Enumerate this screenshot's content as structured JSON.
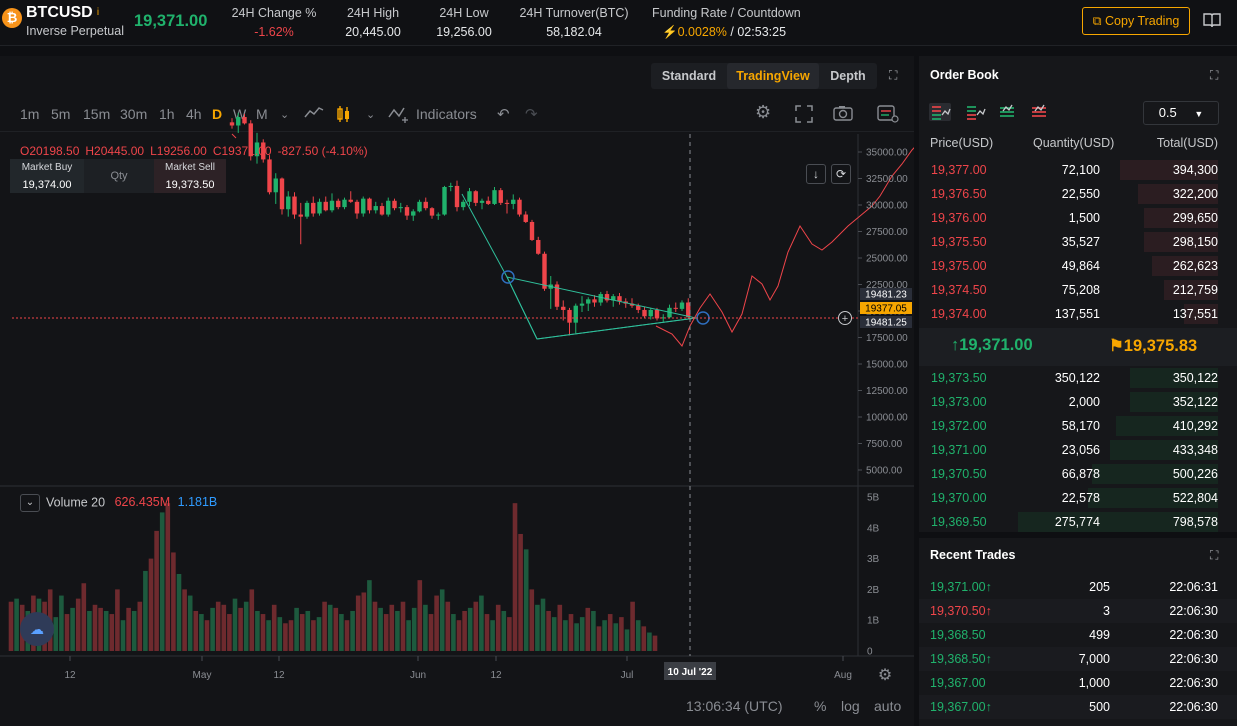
{
  "header": {
    "coin_icon": "bitcoin-icon",
    "symbol": "BTCUSD",
    "contract_type": "Inverse Perpetual",
    "last_price": "19,371.00",
    "stats": [
      {
        "label": "24H Change %",
        "value": "-1.62%",
        "color": "red"
      },
      {
        "label": "24H High",
        "value": "20,445.00",
        "color": "white"
      },
      {
        "label": "24H Low",
        "value": "19,256.00",
        "color": "white"
      },
      {
        "label": "24H Turnover(BTC)",
        "value": "58,182.04",
        "color": "white"
      }
    ],
    "funding_label": "Funding Rate / Countdown",
    "funding_rate": "0.0028%",
    "funding_sep": " / ",
    "countdown": "02:53:25",
    "copy_trading_label": "Copy Trading"
  },
  "chart_tabs": {
    "standard": "Standard",
    "tradingview": "TradingView",
    "depth": "Depth",
    "active": "TradingView"
  },
  "toolbar": {
    "timeframes": [
      "1m",
      "5m",
      "15m",
      "30m",
      "1h",
      "4h",
      "D",
      "W",
      "M"
    ],
    "active_timeframe": "D",
    "indicators_label": "Indicators"
  },
  "ohlc": {
    "open": "O20198.50",
    "high": "H20445.00",
    "low": "L19256.00",
    "close": "C19371.00",
    "change": "-827.50 (-4.10%)"
  },
  "quick_trade": {
    "buy_label": "Market Buy",
    "buy_price": "19,374.00",
    "qty_label": "Qty",
    "sell_label": "Market Sell",
    "sell_price": "19,373.50"
  },
  "chart_data": {
    "type": "candlestick",
    "price_axis": [
      "35000.00",
      "32500.00",
      "30000.00",
      "27500.00",
      "25000.00",
      "22500.00",
      "20000.00",
      "17500.00",
      "15000.00",
      "12500.00",
      "10000.00",
      "7500.00",
      "5000.00"
    ],
    "price_tags": [
      {
        "label": "19481.23",
        "color": "#2a2e39",
        "text": "#ffffff"
      },
      {
        "label": "19377.05",
        "color": "#f7a600",
        "text": "#000000"
      },
      {
        "label": "19481.25",
        "color": "#2a2e39",
        "text": "#ffffff"
      }
    ],
    "volume_label": "Volume 20",
    "volume_value": "626.435M",
    "volume_ma": "1.181B",
    "volume_axis": [
      "5B",
      "4B",
      "3B",
      "2B",
      "1B",
      "0"
    ],
    "time_axis": [
      "12",
      "May",
      "12",
      "Jun",
      "12",
      "Jul",
      "Aug"
    ],
    "crosshair_date": "10 Jul '22",
    "up_color": "#20b26c",
    "down_color": "#ef454a"
  },
  "bottom_bar": {
    "time": "13:06:34 (UTC)",
    "percent": "%",
    "log": "log",
    "auto": "auto"
  },
  "order_book": {
    "title": "Order Book",
    "step": "0.5",
    "headers": {
      "price": "Price(USD)",
      "qty": "Quantity(USD)",
      "total": "Total(USD)"
    },
    "asks": [
      {
        "price": "19,377.00",
        "qty": "72,100",
        "total": "394,300",
        "depth": 0.49
      },
      {
        "price": "19,376.50",
        "qty": "22,550",
        "total": "322,200",
        "depth": 0.4
      },
      {
        "price": "19,376.00",
        "qty": "1,500",
        "total": "299,650",
        "depth": 0.37
      },
      {
        "price": "19,375.50",
        "qty": "35,527",
        "total": "298,150",
        "depth": 0.37
      },
      {
        "price": "19,375.00",
        "qty": "49,864",
        "total": "262,623",
        "depth": 0.33
      },
      {
        "price": "19,374.50",
        "qty": "75,208",
        "total": "212,759",
        "depth": 0.27
      },
      {
        "price": "19,374.00",
        "qty": "137,551",
        "total": "137,551",
        "depth": 0.17
      }
    ],
    "mid_last": "19,371.00",
    "mid_mark": "19,375.83",
    "bids": [
      {
        "price": "19,373.50",
        "qty": "350,122",
        "total": "350,122",
        "depth": 0.44
      },
      {
        "price": "19,373.00",
        "qty": "2,000",
        "total": "352,122",
        "depth": 0.44
      },
      {
        "price": "19,372.00",
        "qty": "58,170",
        "total": "410,292",
        "depth": 0.51
      },
      {
        "price": "19,371.00",
        "qty": "23,056",
        "total": "433,348",
        "depth": 0.54
      },
      {
        "price": "19,370.50",
        "qty": "66,878",
        "total": "500,226",
        "depth": 0.63
      },
      {
        "price": "19,370.00",
        "qty": "22,578",
        "total": "522,804",
        "depth": 0.65
      },
      {
        "price": "19,369.50",
        "qty": "275,774",
        "total": "798,578",
        "depth": 1.0
      }
    ]
  },
  "recent_trades": {
    "title": "Recent Trades",
    "rows": [
      {
        "price": "19,371.00",
        "arrow": "↑",
        "side": "up",
        "qty": "205",
        "time": "22:06:31"
      },
      {
        "price": "19,370.50",
        "arrow": "↑",
        "side": "down",
        "qty": "3",
        "time": "22:06:30"
      },
      {
        "price": "19,368.50",
        "arrow": "",
        "side": "up",
        "qty": "499",
        "time": "22:06:30"
      },
      {
        "price": "19,368.50",
        "arrow": "↑",
        "side": "up",
        "qty": "7,000",
        "time": "22:06:30"
      },
      {
        "price": "19,367.00",
        "arrow": "",
        "side": "up",
        "qty": "1,000",
        "time": "22:06:30"
      },
      {
        "price": "19,367.00",
        "arrow": "↑",
        "side": "up",
        "qty": "500",
        "time": "22:06:30"
      }
    ]
  }
}
